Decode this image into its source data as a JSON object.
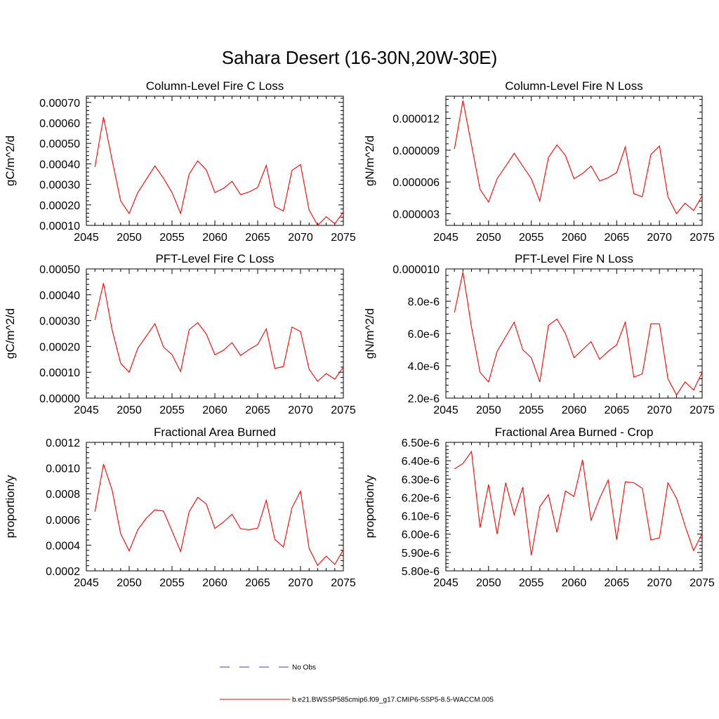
{
  "figure_title": "Sahara Desert (16-30N,20W-30E)",
  "legend": {
    "items": [
      {
        "label": "No Obs",
        "color": "#3b3bd1",
        "style": "dashed"
      },
      {
        "label": "b.e21.BWSSP585cmip6.f09_g17.CMIP6-SSP5-8.5-WACCM.005",
        "color": "#ff0000",
        "style": "solid"
      }
    ]
  },
  "chart_data": [
    {
      "type": "line",
      "title": "Column-Level Fire C Loss",
      "ylabel": "gC/m^2/d",
      "xlim": [
        2045,
        2075
      ],
      "ylim": [
        0.0001,
        0.00073
      ],
      "x_ticks": [
        "2045",
        "2050",
        "2055",
        "2060",
        "2065",
        "2070",
        "2075"
      ],
      "y_ticks": [
        {
          "v": 0.0001,
          "label": "0.00010"
        },
        {
          "v": 0.0002,
          "label": "0.00020"
        },
        {
          "v": 0.0003,
          "label": "0.00030"
        },
        {
          "v": 0.0004,
          "label": "0.00040"
        },
        {
          "v": 0.0005,
          "label": "0.00050"
        },
        {
          "v": 0.0006,
          "label": "0.00060"
        },
        {
          "v": 0.0007,
          "label": "0.00070"
        }
      ],
      "series": [
        {
          "color": "#ff0000",
          "x": [
            2046,
            2047,
            2048,
            2049,
            2050,
            2051,
            2052,
            2053,
            2054,
            2055,
            2056,
            2057,
            2058,
            2059,
            2060,
            2061,
            2062,
            2063,
            2064,
            2065,
            2066,
            2067,
            2068,
            2069,
            2070,
            2071,
            2072,
            2073,
            2074,
            2075
          ],
          "y": [
            0.000385,
            0.000628,
            0.00042,
            0.00022,
            0.000158,
            0.00026,
            0.000325,
            0.00039,
            0.00033,
            0.00026,
            0.000158,
            0.00035,
            0.000415,
            0.00037,
            0.00026,
            0.00028,
            0.000315,
            0.00025,
            0.000263,
            0.000285,
            0.000393,
            0.000192,
            0.00017,
            0.000368,
            0.000397,
            0.000175,
            0.0001,
            0.000142,
            0.000108,
            0.000165
          ]
        }
      ]
    },
    {
      "type": "line",
      "title": "Column-Level Fire N Loss",
      "ylabel": "gN/m^2/d",
      "xlim": [
        2045,
        2075
      ],
      "ylim": [
        1.9e-06,
        1.41e-05
      ],
      "x_ticks": [
        "2045",
        "2050",
        "2055",
        "2060",
        "2065",
        "2070",
        "2075"
      ],
      "y_ticks": [
        {
          "v": 3e-06,
          "label": "0.000003"
        },
        {
          "v": 6e-06,
          "label": "0.000006"
        },
        {
          "v": 9e-06,
          "label": "0.000009"
        },
        {
          "v": 1.2e-05,
          "label": "0.000012"
        }
      ],
      "series": [
        {
          "color": "#ff0000",
          "x": [
            2046,
            2047,
            2048,
            2049,
            2050,
            2051,
            2052,
            2053,
            2054,
            2055,
            2056,
            2057,
            2058,
            2059,
            2060,
            2061,
            2062,
            2063,
            2064,
            2065,
            2066,
            2067,
            2068,
            2069,
            2070,
            2071,
            2072,
            2073,
            2074,
            2075
          ],
          "y": [
            9.1e-06,
            1.37e-05,
            9.5e-06,
            5.3e-06,
            4.1e-06,
            6.3e-06,
            7.5e-06,
            8.7e-06,
            7.5e-06,
            6.3e-06,
            4.2e-06,
            8.3e-06,
            9.5e-06,
            8.5e-06,
            6.3e-06,
            6.8e-06,
            7.5e-06,
            6.1e-06,
            6.4e-06,
            6.9e-06,
            9.3e-06,
            4.9e-06,
            4.6e-06,
            8.6e-06,
            9.4e-06,
            4.6e-06,
            3e-06,
            4e-06,
            3.3e-06,
            4.7e-06
          ]
        }
      ]
    },
    {
      "type": "line",
      "title": "PFT-Level Fire C Loss",
      "ylabel": "gC/m^2/d",
      "xlim": [
        2045,
        2075
      ],
      "ylim": [
        0.0,
        0.0005
      ],
      "x_ticks": [
        "2045",
        "2050",
        "2055",
        "2060",
        "2065",
        "2070",
        "2075"
      ],
      "y_ticks": [
        {
          "v": 0.0,
          "label": "0.00000"
        },
        {
          "v": 0.0001,
          "label": "0.00010"
        },
        {
          "v": 0.0002,
          "label": "0.00020"
        },
        {
          "v": 0.0003,
          "label": "0.00030"
        },
        {
          "v": 0.0004,
          "label": "0.00040"
        },
        {
          "v": 0.0005,
          "label": "0.00050"
        }
      ],
      "series": [
        {
          "color": "#ff0000",
          "x": [
            2046,
            2047,
            2048,
            2049,
            2050,
            2051,
            2052,
            2053,
            2054,
            2055,
            2056,
            2057,
            2058,
            2059,
            2060,
            2061,
            2062,
            2063,
            2064,
            2065,
            2066,
            2067,
            2068,
            2069,
            2070,
            2071,
            2072,
            2073,
            2074,
            2075
          ],
          "y": [
            0.000302,
            0.000445,
            0.000265,
            0.000135,
            0.0001,
            0.000193,
            0.00024,
            0.000288,
            0.000198,
            0.000168,
            0.000103,
            0.000265,
            0.000292,
            0.000248,
            0.000168,
            0.000185,
            0.000215,
            0.000165,
            0.000188,
            0.000208,
            0.000268,
            0.000115,
            0.000122,
            0.000275,
            0.000258,
            0.000112,
            6.5e-05,
            9.5e-05,
            7.3e-05,
            0.00012
          ]
        }
      ]
    },
    {
      "type": "line",
      "title": "PFT-Level Fire N Loss",
      "ylabel": "gN/m^2/d",
      "xlim": [
        2045,
        2075
      ],
      "ylim": [
        2e-06,
        1e-05
      ],
      "x_ticks": [
        "2045",
        "2050",
        "2055",
        "2060",
        "2065",
        "2070",
        "2075"
      ],
      "y_ticks": [
        {
          "v": 2e-06,
          "label": "2.0e-6"
        },
        {
          "v": 4e-06,
          "label": "4.0e-6"
        },
        {
          "v": 6e-06,
          "label": "6.0e-6"
        },
        {
          "v": 8e-06,
          "label": "8.0e-6"
        },
        {
          "v": 1e-05,
          "label": "0.000010"
        }
      ],
      "series": [
        {
          "color": "#ff0000",
          "x": [
            2046,
            2047,
            2048,
            2049,
            2050,
            2051,
            2052,
            2053,
            2054,
            2055,
            2056,
            2057,
            2058,
            2059,
            2060,
            2061,
            2062,
            2063,
            2064,
            2065,
            2066,
            2067,
            2068,
            2069,
            2070,
            2071,
            2072,
            2073,
            2074,
            2075
          ],
          "y": [
            7.3e-06,
            9.8e-06,
            6.4e-06,
            3.6e-06,
            3e-06,
            4.9e-06,
            5.8e-06,
            6.7e-06,
            5e-06,
            4.5e-06,
            3e-06,
            6.5e-06,
            6.9e-06,
            6e-06,
            4.5e-06,
            5e-06,
            5.5e-06,
            4.4e-06,
            4.9e-06,
            5.3e-06,
            6.7e-06,
            3.3e-06,
            3.5e-06,
            6.6e-06,
            6.6e-06,
            3.2e-06,
            2.2e-06,
            3e-06,
            2.5e-06,
            3.6e-06
          ]
        }
      ]
    },
    {
      "type": "line",
      "title": "Fractional Area Burned",
      "ylabel": "proportion/y",
      "xlim": [
        2045,
        2075
      ],
      "ylim": [
        0.0002,
        0.0012
      ],
      "x_ticks": [
        "2045",
        "2050",
        "2055",
        "2060",
        "2065",
        "2070",
        "2075"
      ],
      "y_ticks": [
        {
          "v": 0.0002,
          "label": "0.0002"
        },
        {
          "v": 0.0004,
          "label": "0.0004"
        },
        {
          "v": 0.0006,
          "label": "0.0006"
        },
        {
          "v": 0.0008,
          "label": "0.0008"
        },
        {
          "v": 0.001,
          "label": "0.0010"
        },
        {
          "v": 0.0012,
          "label": "0.0012"
        }
      ],
      "series": [
        {
          "color": "#ff0000",
          "x": [
            2046,
            2047,
            2048,
            2049,
            2050,
            2051,
            2052,
            2053,
            2054,
            2055,
            2056,
            2057,
            2058,
            2059,
            2060,
            2061,
            2062,
            2063,
            2064,
            2065,
            2066,
            2067,
            2068,
            2069,
            2070,
            2071,
            2072,
            2073,
            2074,
            2075
          ],
          "y": [
            0.00066,
            0.00103,
            0.00083,
            0.00049,
            0.000355,
            0.00052,
            0.00061,
            0.000675,
            0.000665,
            0.00051,
            0.00035,
            0.00066,
            0.000772,
            0.00072,
            0.00053,
            0.00058,
            0.00064,
            0.000528,
            0.00052,
            0.000532,
            0.00075,
            0.000445,
            0.000385,
            0.00069,
            0.00082,
            0.000375,
            0.000242,
            0.000315,
            0.00025,
            0.000365
          ]
        }
      ]
    },
    {
      "type": "line",
      "title": "Fractional Area Burned - Crop",
      "ylabel": "proportion/y",
      "xlim": [
        2045,
        2075
      ],
      "ylim": [
        5.8e-06,
        6.5e-06
      ],
      "x_ticks": [
        "2045",
        "2050",
        "2055",
        "2060",
        "2065",
        "2070",
        "2075"
      ],
      "y_ticks": [
        {
          "v": 5.8e-06,
          "label": "5.80e-6"
        },
        {
          "v": 5.9e-06,
          "label": "5.90e-6"
        },
        {
          "v": 6e-06,
          "label": "6.00e-6"
        },
        {
          "v": 6.1e-06,
          "label": "6.10e-6"
        },
        {
          "v": 6.2e-06,
          "label": "6.20e-6"
        },
        {
          "v": 6.3e-06,
          "label": "6.30e-6"
        },
        {
          "v": 6.4e-06,
          "label": "6.40e-6"
        },
        {
          "v": 6.5e-06,
          "label": "6.50e-6"
        }
      ],
      "series": [
        {
          "color": "#ff0000",
          "x": [
            2046,
            2047,
            2048,
            2049,
            2050,
            2051,
            2052,
            2053,
            2054,
            2055,
            2056,
            2057,
            2058,
            2059,
            2060,
            2061,
            2062,
            2063,
            2064,
            2065,
            2066,
            2067,
            2068,
            2069,
            2070,
            2071,
            2072,
            2073,
            2074,
            2075
          ],
          "y": [
            6.355e-06,
            6.385e-06,
            6.45e-06,
            6.035e-06,
            6.27e-06,
            6e-06,
            6.28e-06,
            6.105e-06,
            6.255e-06,
            5.885e-06,
            6.15e-06,
            6.215e-06,
            6.01e-06,
            6.235e-06,
            6.205e-06,
            6.405e-06,
            6.075e-06,
            6.195e-06,
            6.295e-06,
            5.97e-06,
            6.285e-06,
            6.28e-06,
            6.25e-06,
            5.968e-06,
            5.98e-06,
            6.28e-06,
            6.195e-06,
            6.045e-06,
            5.91e-06,
            6.005e-06
          ]
        }
      ]
    }
  ]
}
